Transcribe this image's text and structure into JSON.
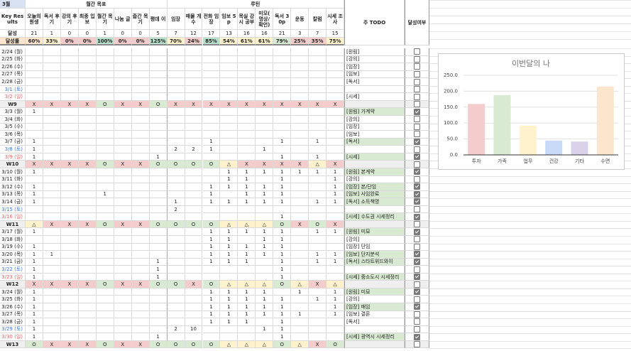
{
  "sheet": {
    "month": "3월",
    "group_headers": [
      "월간 목표",
      "루틴"
    ],
    "key_results": "Key Results",
    "todo_header": "주 TODO",
    "done_header": "달성여부",
    "columns": [
      "오늘의 원생",
      "독서 후기",
      "강의 후기",
      "최종 입보",
      "월간 목기",
      "나눔 글",
      "줍간 목기",
      "평데 이",
      "임장",
      "매물 개수",
      "전화 임장",
      "임보 5p",
      "목실 강시 공부",
      "미모( 명상/ 확언)",
      "독서 30p",
      "운동",
      "칼럼",
      "시세 조사"
    ],
    "achieved_label": "달성",
    "achieved": [
      21,
      1,
      0,
      0,
      1,
      0,
      0,
      5,
      7,
      12,
      17,
      13,
      16,
      16,
      21,
      3,
      7,
      15
    ],
    "rate_label": "달성률",
    "rates": [
      "60%",
      "33%",
      "0%",
      "0%",
      "100%",
      "0%",
      "0%",
      "125%",
      "70%",
      "24%",
      "85%",
      "54%",
      "61%",
      "61%",
      "79%",
      "25%",
      "35%",
      "75%"
    ],
    "rate_colors": [
      "#fce5cd",
      "#fff2cc",
      "#f4cccc",
      "#f4cccc",
      "#b7e1cd",
      "#f4cccc",
      "#f4cccc",
      "#b7e1cd",
      "#fff2cc",
      "#f4cccc",
      "#b7e1cd",
      "#fff2cc",
      "#fff2cc",
      "#fff2cc",
      "#d9ead3",
      "#f4cccc",
      "#f4cccc",
      "#fff2cc"
    ],
    "status_colors": {
      "X": "#f4cccc",
      "O": "#d9ead3",
      "△": "#fff2cc"
    },
    "rows": [
      {
        "date": "2/24 (월)",
        "cells": [
          null,
          null,
          null,
          null,
          null,
          null,
          null,
          null,
          null,
          null,
          null,
          null,
          null,
          null,
          null,
          null,
          null,
          null
        ],
        "todo": "[원림]",
        "done": false
      },
      {
        "date": "2/25 (화)",
        "cells": [
          null,
          null,
          null,
          null,
          null,
          null,
          null,
          null,
          null,
          null,
          null,
          null,
          null,
          null,
          null,
          null,
          null,
          null
        ],
        "todo": "[강의]",
        "done": false
      },
      {
        "date": "2/26 (수)",
        "cells": [
          null,
          null,
          null,
          null,
          null,
          null,
          null,
          null,
          null,
          null,
          null,
          null,
          null,
          null,
          null,
          null,
          null,
          null
        ],
        "todo": "[임장]",
        "done": false
      },
      {
        "date": "2/27 (목)",
        "cells": [
          null,
          null,
          null,
          null,
          null,
          null,
          null,
          null,
          null,
          null,
          null,
          null,
          null,
          null,
          null,
          null,
          null,
          null
        ],
        "todo": "[임보]",
        "done": false
      },
      {
        "date": "2/28 (금)",
        "cells": [
          null,
          null,
          null,
          null,
          null,
          null,
          null,
          null,
          null,
          null,
          null,
          null,
          null,
          null,
          null,
          null,
          null,
          null
        ],
        "todo": "[독서]",
        "done": false
      },
      {
        "date": "3/1 (토)",
        "cells": [
          null,
          null,
          null,
          null,
          null,
          null,
          null,
          null,
          null,
          null,
          null,
          null,
          null,
          null,
          null,
          null,
          null,
          null
        ],
        "todo": null,
        "done": false
      },
      {
        "date": "3/2 (일)",
        "cells": [
          null,
          null,
          null,
          null,
          null,
          null,
          null,
          null,
          null,
          null,
          null,
          null,
          null,
          null,
          null,
          null,
          null,
          null
        ],
        "todo": "[시세]",
        "done": false
      },
      {
        "date": "W9",
        "cells": [
          "X",
          "X",
          "X",
          "X",
          "O",
          "X",
          "X",
          "O",
          "X",
          "X",
          "X",
          "X",
          "X",
          "X",
          "X",
          "X",
          "X",
          "X"
        ],
        "todo": null,
        "done": false
      },
      {
        "date": "3/3 (월)",
        "cells": [
          1,
          null,
          null,
          null,
          null,
          null,
          null,
          null,
          null,
          null,
          null,
          null,
          null,
          null,
          null,
          null,
          null,
          null
        ],
        "todo": "[원림] 가계약",
        "done": true
      },
      {
        "date": "3/4 (화)",
        "cells": [
          null,
          null,
          null,
          null,
          null,
          null,
          null,
          null,
          null,
          null,
          null,
          null,
          null,
          null,
          null,
          null,
          null,
          null
        ],
        "todo": "[강의]",
        "done": false
      },
      {
        "date": "3/5 (수)",
        "cells": [
          null,
          null,
          null,
          null,
          null,
          null,
          null,
          null,
          null,
          null,
          null,
          null,
          null,
          null,
          null,
          null,
          null,
          null
        ],
        "todo": "[임장]",
        "done": false
      },
      {
        "date": "3/6 (목)",
        "cells": [
          null,
          null,
          null,
          null,
          null,
          null,
          null,
          null,
          null,
          null,
          null,
          null,
          null,
          null,
          null,
          null,
          null,
          null
        ],
        "todo": "[임보]",
        "done": false
      },
      {
        "date": "3/7 (금)",
        "cells": [
          1,
          null,
          null,
          null,
          null,
          null,
          null,
          null,
          null,
          null,
          1,
          null,
          null,
          null,
          1,
          null,
          1,
          null
        ],
        "todo": "[독서]",
        "done": true
      },
      {
        "date": "3/8 (토)",
        "cells": [
          1,
          null,
          null,
          null,
          null,
          null,
          null,
          null,
          2,
          2,
          1,
          null,
          null,
          1,
          null,
          null,
          null,
          null
        ],
        "todo": null,
        "done": false
      },
      {
        "date": "3/9 (일)",
        "cells": [
          1,
          null,
          null,
          null,
          null,
          null,
          null,
          1,
          null,
          null,
          null,
          null,
          null,
          null,
          1,
          null,
          1,
          null
        ],
        "todo": "[시세]",
        "done": true
      },
      {
        "date": "W10",
        "cells": [
          "X",
          "X",
          "X",
          "X",
          "O",
          "X",
          "X",
          "O",
          "O",
          "O",
          "O",
          "△",
          "X",
          "X",
          "X",
          "X",
          "△",
          "X"
        ],
        "todo": null,
        "done": false
      },
      {
        "date": "3/10 (월)",
        "cells": [
          1,
          null,
          null,
          null,
          null,
          null,
          null,
          null,
          null,
          null,
          null,
          1,
          1,
          1,
          1,
          1,
          1,
          1
        ],
        "todo": "[원림] 본계약",
        "done": true
      },
      {
        "date": "3/11 (화)",
        "cells": [
          null,
          null,
          null,
          null,
          null,
          null,
          null,
          null,
          null,
          null,
          null,
          1,
          1,
          null,
          1,
          null,
          null,
          1
        ],
        "todo": "[강의]",
        "done": false
      },
      {
        "date": "3/12 (수)",
        "cells": [
          1,
          null,
          null,
          null,
          null,
          null,
          null,
          null,
          null,
          null,
          1,
          1,
          1,
          1,
          1,
          null,
          null,
          1
        ],
        "todo": "[임장] 본/단임",
        "done": true
      },
      {
        "date": "3/13 (목)",
        "cells": [
          1,
          null,
          null,
          null,
          1,
          null,
          null,
          null,
          null,
          null,
          1,
          null,
          1,
          1,
          1,
          null,
          null,
          1
        ],
        "todo": "[임보] 사임완료",
        "done": true
      },
      {
        "date": "3/14 (금)",
        "cells": [
          1,
          null,
          null,
          null,
          null,
          null,
          null,
          null,
          1,
          null,
          1,
          1,
          1,
          1,
          1,
          null,
          1,
          1
        ],
        "todo": "[독서] 소득책명",
        "done": true
      },
      {
        "date": "3/15 (토)",
        "cells": [
          null,
          null,
          null,
          null,
          null,
          null,
          null,
          null,
          2,
          null,
          null,
          null,
          null,
          null,
          null,
          null,
          null,
          null
        ],
        "todo": null,
        "done": false
      },
      {
        "date": "3/16 (일)",
        "cells": [
          null,
          null,
          null,
          null,
          null,
          null,
          null,
          null,
          null,
          null,
          null,
          null,
          null,
          null,
          1,
          null,
          null,
          null
        ],
        "todo": "[시세] 수도권 시세정리",
        "done": true
      },
      {
        "date": "W11",
        "cells": [
          "△",
          "X",
          "X",
          "X",
          "O",
          "X",
          "X",
          "O",
          "O",
          "O",
          "O",
          "△",
          "△",
          "△",
          "O",
          "X",
          "O",
          "X"
        ],
        "todo": null,
        "done": false
      },
      {
        "date": "3/17 (월)",
        "cells": [
          1,
          null,
          null,
          null,
          null,
          null,
          null,
          null,
          null,
          null,
          1,
          1,
          1,
          1,
          1,
          null,
          1,
          1
        ],
        "todo": "[원림] 미묘",
        "done": true
      },
      {
        "date": "3/18 (화)",
        "cells": [
          null,
          null,
          null,
          null,
          null,
          null,
          null,
          null,
          null,
          null,
          1,
          1,
          null,
          1,
          1,
          null,
          null,
          null
        ],
        "todo": "[강의]",
        "done": false
      },
      {
        "date": "3/19 (수)",
        "cells": [
          1,
          null,
          null,
          null,
          null,
          null,
          null,
          null,
          null,
          null,
          1,
          1,
          1,
          1,
          1,
          null,
          null,
          null
        ],
        "todo": "[임장] 단임",
        "done": false
      },
      {
        "date": "3/20 (목)",
        "cells": [
          1,
          1,
          null,
          null,
          null,
          null,
          null,
          null,
          null,
          null,
          1,
          1,
          1,
          1,
          1,
          null,
          1,
          1
        ],
        "todo": "[임보] 단지분석",
        "done": true
      },
      {
        "date": "3/21 (금)",
        "cells": [
          1,
          null,
          null,
          null,
          null,
          null,
          null,
          1,
          null,
          null,
          1,
          1,
          1,
          null,
          1,
          null,
          1,
          1
        ],
        "todo": "[독서] 스타트위드와이",
        "done": true
      },
      {
        "date": "3/22 (토)",
        "cells": [
          1,
          null,
          null,
          null,
          null,
          null,
          null,
          1,
          null,
          null,
          null,
          null,
          null,
          null,
          1,
          null,
          null,
          null
        ],
        "todo": null,
        "done": false
      },
      {
        "date": "3/23 (일)",
        "cells": [
          1,
          null,
          null,
          null,
          null,
          null,
          null,
          1,
          null,
          null,
          null,
          null,
          null,
          null,
          1,
          null,
          null,
          null
        ],
        "todo": "[시세] 중소도시 시세정리",
        "done": true
      },
      {
        "date": "W12",
        "cells": [
          "X",
          "X",
          "X",
          "X",
          "O",
          "X",
          "X",
          "O",
          "O",
          "X",
          "O",
          "△",
          "△",
          "△",
          "O",
          "△",
          "X",
          "△"
        ],
        "todo": null,
        "done": false
      },
      {
        "date": "3/24 (월)",
        "cells": [
          1,
          null,
          null,
          null,
          null,
          null,
          null,
          null,
          null,
          null,
          1,
          1,
          1,
          1,
          null,
          1,
          null,
          1
        ],
        "todo": "[원림] 미묘",
        "done": true
      },
      {
        "date": "3/25 (화)",
        "cells": [
          1,
          null,
          null,
          null,
          null,
          null,
          null,
          null,
          null,
          null,
          1,
          1,
          1,
          1,
          1,
          null,
          1,
          1
        ],
        "todo": "[강의]",
        "done": false
      },
      {
        "date": "3/26 (수)",
        "cells": [
          1,
          null,
          null,
          null,
          null,
          null,
          null,
          null,
          null,
          null,
          1,
          1,
          1,
          1,
          1,
          null,
          null,
          1
        ],
        "todo": "[임장] 매임",
        "done": true
      },
      {
        "date": "3/27 (목)",
        "cells": [
          1,
          null,
          null,
          null,
          null,
          null,
          null,
          null,
          null,
          null,
          1,
          1,
          1,
          1,
          1,
          1,
          null,
          1
        ],
        "todo": "[임보] 결론",
        "done": false
      },
      {
        "date": "3/28 (금)",
        "cells": [
          1,
          null,
          null,
          null,
          null,
          null,
          null,
          null,
          null,
          null,
          1,
          1,
          1,
          null,
          1,
          null,
          null,
          null
        ],
        "todo": "[독서]",
        "done": false
      },
      {
        "date": "3/29 (토)",
        "cells": [
          1,
          null,
          null,
          null,
          null,
          null,
          null,
          null,
          2,
          10,
          null,
          null,
          null,
          1,
          1,
          null,
          null,
          null
        ],
        "todo": null,
        "done": false
      },
      {
        "date": "3/30 (일)",
        "cells": [
          1,
          null,
          null,
          null,
          null,
          null,
          null,
          1,
          null,
          null,
          null,
          null,
          null,
          null,
          1,
          null,
          null,
          null
        ],
        "todo": "[시세] 광역시 시세정리",
        "done": true
      },
      {
        "date": "W13",
        "cells": [
          "O",
          "X",
          "X",
          "X",
          "O",
          "X",
          "X",
          "O",
          "O",
          "O",
          "O",
          "△",
          "△",
          "△",
          "O",
          "△",
          "X",
          "O"
        ],
        "todo": null,
        "done": false
      }
    ]
  },
  "chart_data": {
    "type": "bar",
    "title": "이번달의 나",
    "categories": [
      "투자",
      "가족",
      "업무",
      "건강",
      "기타",
      "수면"
    ],
    "values": [
      160,
      188,
      92,
      45,
      42,
      215
    ],
    "colors": [
      "#f4cccc",
      "#d9ead3",
      "#fff2cc",
      "#c9daf8",
      "#d9d2e9",
      "#fce5cd"
    ],
    "ylim": [
      0,
      250
    ],
    "yticks": [
      {
        "value": 0,
        "label": "0.0"
      },
      {
        "value": 50,
        "label": "50.0"
      },
      {
        "value": 100,
        "label": "100.0"
      },
      {
        "value": 150,
        "label": "150.0"
      },
      {
        "value": 200,
        "label": "200.0"
      },
      {
        "value": 250,
        "label": "250.0"
      }
    ],
    "grid": true
  }
}
